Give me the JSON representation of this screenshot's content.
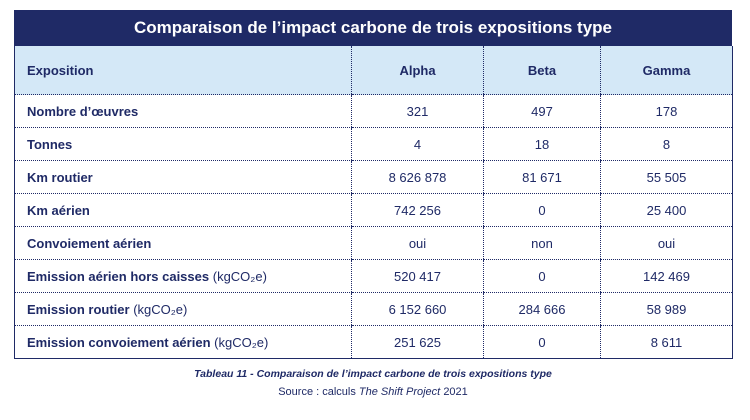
{
  "title": "Comparaison de l’impact carbone de trois expositions type",
  "header": {
    "label": "Exposition",
    "columns": [
      "Alpha",
      "Beta",
      "Gamma"
    ]
  },
  "rows": [
    {
      "label": "Nombre d’œuvres",
      "unit": "",
      "values": [
        "321",
        "497",
        "178"
      ]
    },
    {
      "label": "Tonnes",
      "unit": "",
      "values": [
        "4",
        "18",
        "8"
      ]
    },
    {
      "label": "Km routier",
      "unit": "",
      "values": [
        "8 626 878",
        "81 671",
        "55 505"
      ]
    },
    {
      "label": "Km aérien",
      "unit": "",
      "values": [
        "742 256",
        "0",
        "25 400"
      ]
    },
    {
      "label": "Convoiement aérien",
      "unit": "",
      "values": [
        "oui",
        "non",
        "oui"
      ]
    },
    {
      "label": "Emission aérien hors caisses",
      "unit": "(kgCO₂e)",
      "values": [
        "520 417",
        "0",
        "142 469"
      ]
    },
    {
      "label": "Emission routier",
      "unit": "(kgCO₂e)",
      "values": [
        "6 152 660",
        "284 666",
        "58 989"
      ]
    },
    {
      "label": "Emission convoiement aérien",
      "unit": "(kgCO₂e)",
      "values": [
        "251 625",
        "0",
        "8 611"
      ]
    }
  ],
  "caption": "Tableau 11 - Comparaison de l’impact carbone de trois expositions type",
  "source": {
    "prefix": "Source : calculs",
    "org": "The Shift Project",
    "year": "2021"
  }
}
